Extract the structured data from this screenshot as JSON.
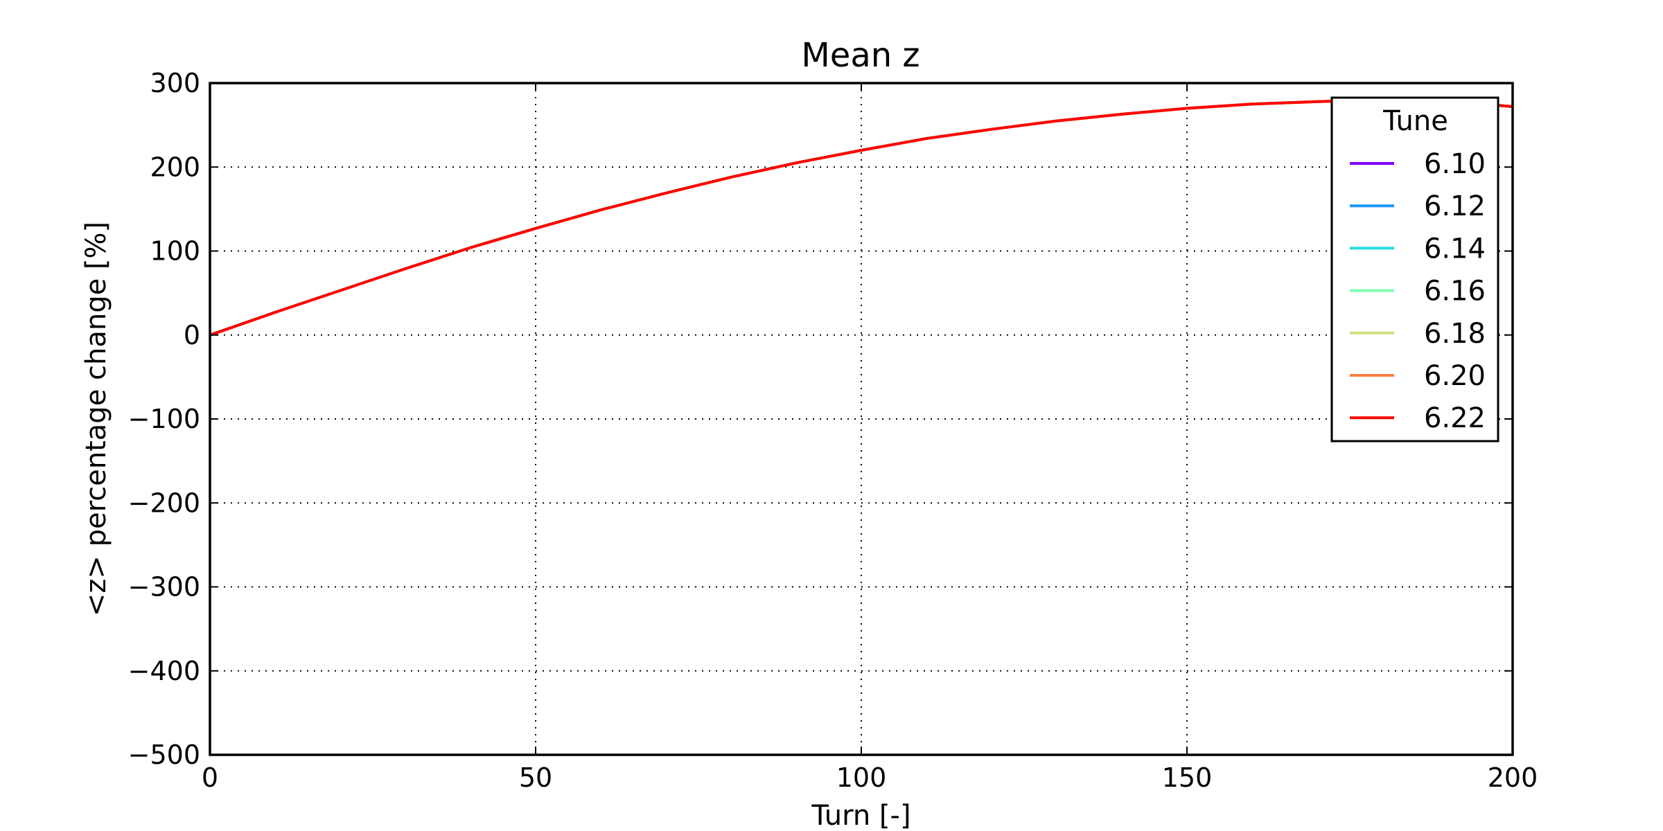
{
  "chart_data": {
    "type": "line",
    "title": "Mean z",
    "xlabel": "Turn [-]",
    "ylabel": "<z> percentage change [%]",
    "xlim": [
      0,
      200
    ],
    "ylim": [
      -500,
      300
    ],
    "xticks": [
      0,
      50,
      100,
      150,
      200
    ],
    "yticks": [
      300,
      200,
      100,
      0,
      -100,
      -200,
      -300,
      -400,
      -500
    ],
    "xtick_labels": [
      "0",
      "50",
      "100",
      "150",
      "200"
    ],
    "ytick_labels": [
      "300",
      "200",
      "100",
      "0",
      "−100",
      "−200",
      "−300",
      "−400",
      "−500"
    ],
    "grid": true,
    "legend": {
      "title": "Tune",
      "placement": "top-right"
    },
    "x": [
      0,
      10,
      20,
      30,
      40,
      50,
      60,
      70,
      80,
      90,
      100,
      110,
      120,
      130,
      140,
      150,
      160,
      170,
      180,
      190,
      200
    ],
    "series": [
      {
        "name": "6.10",
        "color": "#8000ff",
        "values": [
          0,
          27,
          53,
          79,
          104,
          127,
          149,
          169,
          188,
          205,
          220,
          234,
          245,
          255,
          263,
          270,
          275,
          278,
          280,
          279,
          272
        ]
      },
      {
        "name": "6.12",
        "color": "#1996f3",
        "values": [
          0,
          27,
          53,
          79,
          104,
          127,
          149,
          169,
          188,
          205,
          220,
          234,
          245,
          255,
          263,
          270,
          275,
          278,
          280,
          279,
          272
        ]
      },
      {
        "name": "6.14",
        "color": "#2adddd",
        "values": [
          0,
          27,
          53,
          79,
          104,
          127,
          149,
          169,
          188,
          205,
          220,
          234,
          245,
          255,
          263,
          270,
          275,
          278,
          280,
          279,
          272
        ]
      },
      {
        "name": "6.16",
        "color": "#80ffb4",
        "values": [
          0,
          27,
          53,
          79,
          104,
          127,
          149,
          169,
          188,
          205,
          220,
          234,
          245,
          255,
          263,
          270,
          275,
          278,
          280,
          279,
          272
        ]
      },
      {
        "name": "6.18",
        "color": "#d4dd80",
        "values": [
          0,
          27,
          53,
          79,
          104,
          127,
          149,
          169,
          188,
          205,
          220,
          234,
          245,
          255,
          263,
          270,
          275,
          278,
          280,
          279,
          272
        ]
      },
      {
        "name": "6.20",
        "color": "#ff7f40",
        "values": [
          0,
          27,
          53,
          79,
          104,
          127,
          149,
          169,
          188,
          205,
          220,
          234,
          245,
          255,
          263,
          270,
          275,
          278,
          280,
          279,
          272
        ]
      },
      {
        "name": "6.22",
        "color": "#ff0000",
        "values": [
          0,
          27,
          53,
          79,
          104,
          127,
          149,
          169,
          188,
          205,
          220,
          234,
          245,
          255,
          263,
          270,
          275,
          278,
          280,
          279,
          272
        ]
      }
    ]
  }
}
